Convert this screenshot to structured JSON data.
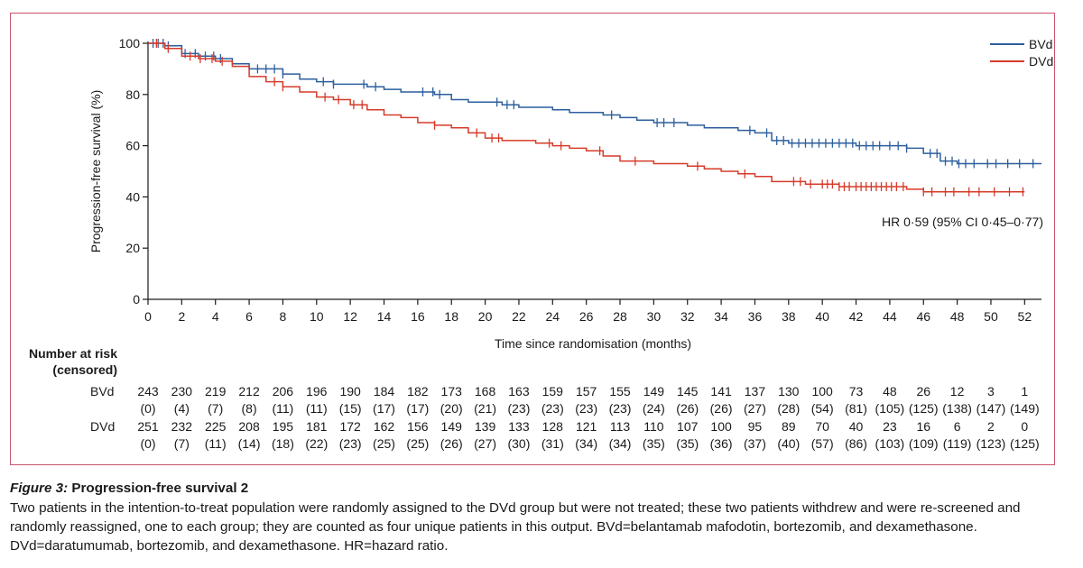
{
  "chart_data": {
    "type": "line",
    "xlabel": "Time since randomisation (months)",
    "ylabel": "Progression-free survival (%)",
    "xlim": [
      0,
      53
    ],
    "ylim": [
      0,
      100
    ],
    "xticks": [
      0,
      2,
      4,
      6,
      8,
      10,
      12,
      14,
      16,
      18,
      20,
      22,
      24,
      26,
      28,
      30,
      32,
      34,
      36,
      38,
      40,
      42,
      44,
      46,
      48,
      50,
      52
    ],
    "yticks": [
      0,
      20,
      40,
      60,
      80,
      100
    ],
    "annotation": "HR 0·59 (95% CI 0·45–0·77)",
    "legend": "top-right",
    "series": [
      {
        "name": "BVd",
        "color": "#2c5f9e",
        "x": [
          0,
          1,
          2,
          3,
          4,
          5,
          6,
          7,
          8,
          9,
          10,
          11,
          12,
          13,
          14,
          15,
          16,
          17,
          18,
          19,
          20,
          21,
          22,
          23,
          24,
          25,
          26,
          27,
          28,
          29,
          30,
          31,
          32,
          33,
          34,
          35,
          36,
          37,
          38,
          39,
          40,
          41,
          42,
          43,
          44,
          45,
          46,
          47,
          48,
          49,
          50,
          51,
          52,
          53
        ],
        "y": [
          100,
          99,
          96,
          95,
          94,
          92,
          90,
          90,
          88,
          86,
          85,
          84,
          84,
          83,
          82,
          81,
          81,
          80,
          78,
          77,
          77,
          76,
          75,
          75,
          74,
          73,
          73,
          72,
          71,
          70,
          69,
          69,
          68,
          67,
          67,
          66,
          65,
          62,
          61,
          61,
          61,
          61,
          60,
          60,
          60,
          59,
          57,
          54,
          53,
          53,
          53,
          53,
          53,
          53
        ]
      },
      {
        "name": "DVd",
        "color": "#d63b29",
        "x": [
          0,
          1,
          2,
          3,
          4,
          5,
          6,
          7,
          8,
          9,
          10,
          11,
          12,
          13,
          14,
          15,
          16,
          17,
          18,
          19,
          20,
          21,
          22,
          23,
          24,
          25,
          26,
          27,
          28,
          29,
          30,
          31,
          32,
          33,
          34,
          35,
          36,
          37,
          38,
          39,
          40,
          41,
          42,
          43,
          44,
          45,
          46,
          47,
          48,
          49,
          50,
          51,
          52
        ],
        "y": [
          100,
          98,
          95,
          94,
          93,
          91,
          87,
          85,
          83,
          81,
          79,
          78,
          76,
          74,
          72,
          71,
          69,
          68,
          67,
          65,
          63,
          62,
          62,
          61,
          60,
          59,
          58,
          56,
          54,
          54,
          53,
          53,
          52,
          51,
          50,
          49,
          48,
          46,
          46,
          45,
          45,
          44,
          44,
          44,
          44,
          43,
          42,
          42,
          42,
          42,
          42,
          42,
          42
        ]
      }
    ],
    "censor_marks": {
      "BVd": [
        0.3,
        0.6,
        0.9,
        1.2,
        2.2,
        2.8,
        3.4,
        3.9,
        4.3,
        6.5,
        7,
        7.5,
        8,
        10.4,
        11,
        12.8,
        13.5,
        16.3,
        16.9,
        17.3,
        20.7,
        21.3,
        21.7,
        27.5,
        30.2,
        30.6,
        31.2,
        35.7,
        36.7,
        37.3,
        37.7,
        38.2,
        38.6,
        39,
        39.4,
        39.8,
        40.2,
        40.6,
        41,
        41.4,
        41.8,
        42.2,
        42.6,
        43,
        43.4,
        44,
        44.5,
        45,
        46.4,
        46.8,
        47.3,
        47.7,
        48.1,
        48.5,
        49,
        49.8,
        50.3,
        51,
        51.7,
        52.5
      ],
      "DVd": [
        0.5,
        1.2,
        2.5,
        3.1,
        3.8,
        4.4,
        7.5,
        8,
        10.5,
        11.3,
        12.2,
        12.7,
        17,
        19.5,
        20.4,
        20.8,
        23.8,
        24.5,
        26.8,
        28.9,
        32.6,
        35.4,
        38.3,
        38.7,
        39.3,
        40,
        40.3,
        40.6,
        41,
        41.3,
        41.6,
        42,
        42.3,
        42.6,
        42.9,
        43.2,
        43.5,
        43.8,
        44.1,
        44.4,
        44.8,
        46,
        46.5,
        47.3,
        47.8,
        48.7,
        49.3,
        50.2,
        51.1,
        51.9
      ]
    }
  },
  "risk_table": {
    "title_line1": "Number at risk",
    "title_line2": "(censored)",
    "rows": [
      {
        "label": "BVd",
        "at_risk": [
          "243",
          "230",
          "219",
          "212",
          "206",
          "196",
          "190",
          "184",
          "182",
          "173",
          "168",
          "163",
          "159",
          "157",
          "155",
          "149",
          "145",
          "141",
          "137",
          "130",
          "100",
          "73",
          "48",
          "26",
          "12",
          "3",
          "1"
        ],
        "censored": [
          "(0)",
          "(4)",
          "(7)",
          "(8)",
          "(11)",
          "(11)",
          "(15)",
          "(17)",
          "(17)",
          "(20)",
          "(21)",
          "(23)",
          "(23)",
          "(23)",
          "(23)",
          "(24)",
          "(26)",
          "(26)",
          "(27)",
          "(28)",
          "(54)",
          "(81)",
          "(105)",
          "(125)",
          "(138)",
          "(147)",
          "(149)"
        ]
      },
      {
        "label": "DVd",
        "at_risk": [
          "251",
          "232",
          "225",
          "208",
          "195",
          "181",
          "172",
          "162",
          "156",
          "149",
          "139",
          "133",
          "128",
          "121",
          "113",
          "110",
          "107",
          "100",
          "95",
          "89",
          "70",
          "40",
          "23",
          "16",
          "6",
          "2",
          "0"
        ],
        "censored": [
          "(0)",
          "(7)",
          "(11)",
          "(14)",
          "(18)",
          "(22)",
          "(23)",
          "(25)",
          "(25)",
          "(26)",
          "(27)",
          "(30)",
          "(31)",
          "(34)",
          "(34)",
          "(35)",
          "(35)",
          "(36)",
          "(37)",
          "(40)",
          "(57)",
          "(86)",
          "(103)",
          "(109)",
          "(119)",
          "(123)",
          "(125)"
        ]
      }
    ]
  },
  "caption": {
    "figure_label": "Figure 3:",
    "title": "Progression-free survival 2",
    "body": "Two patients in the intention-to-treat population were randomly assigned to the DVd group but were not treated; these two patients withdrew and were re-screened and randomly reassigned, one to each group; they are counted as four unique patients in this output. BVd=belantamab mafodotin, bortezomib, and dexamethasone. DVd=daratumumab, bortezomib, and dexamethasone. HR=hazard ratio."
  }
}
